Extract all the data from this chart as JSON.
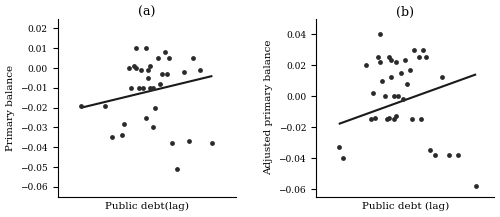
{
  "panel_a": {
    "title": "(a)",
    "xlabel": "Public debt(lag)",
    "ylabel": "Primary balance",
    "scatter_x": [
      0.35,
      0.38,
      0.42,
      0.43,
      0.45,
      0.46,
      0.47,
      0.48,
      0.48,
      0.49,
      0.5,
      0.51,
      0.52,
      0.52,
      0.53,
      0.53,
      0.54,
      0.54,
      0.55,
      0.55,
      0.56,
      0.57,
      0.58,
      0.59,
      0.6,
      0.61,
      0.62,
      0.63,
      0.65,
      0.68,
      0.7,
      0.72,
      0.75,
      0.8,
      0.25
    ],
    "scatter_y": [
      -0.019,
      -0.035,
      -0.034,
      -0.028,
      0.0,
      -0.01,
      0.001,
      0.0,
      0.01,
      -0.01,
      -0.001,
      -0.01,
      -0.025,
      0.01,
      -0.005,
      -0.001,
      0.001,
      -0.01,
      -0.01,
      -0.03,
      -0.02,
      0.005,
      -0.008,
      -0.003,
      0.008,
      -0.003,
      0.005,
      -0.038,
      -0.051,
      -0.002,
      -0.037,
      0.005,
      -0.001,
      -0.038,
      -0.019
    ],
    "trendline_x": [
      0.25,
      0.8
    ],
    "trendline_y": [
      -0.02,
      -0.004
    ],
    "ylim": [
      -0.065,
      0.025
    ],
    "yticks": [
      -0.06,
      -0.05,
      -0.04,
      -0.03,
      -0.02,
      -0.01,
      0.0,
      0.01,
      0.02
    ],
    "xlim": [
      0.15,
      0.9
    ]
  },
  "panel_b": {
    "title": "(b)",
    "xlabel": "Public debt (lag)",
    "ylabel": "Adjusted primary balance",
    "scatter_x": [
      0.42,
      0.44,
      0.45,
      0.46,
      0.47,
      0.48,
      0.48,
      0.49,
      0.5,
      0.51,
      0.52,
      0.52,
      0.53,
      0.53,
      0.54,
      0.54,
      0.55,
      0.55,
      0.56,
      0.57,
      0.58,
      0.59,
      0.6,
      0.61,
      0.62,
      0.63,
      0.65,
      0.66,
      0.67,
      0.68,
      0.7,
      0.72,
      0.75,
      0.78,
      0.82,
      0.9,
      0.3,
      0.32
    ],
    "scatter_y": [
      0.02,
      -0.015,
      0.002,
      -0.014,
      0.025,
      0.022,
      0.04,
      0.01,
      0.0,
      -0.015,
      -0.014,
      0.025,
      0.023,
      0.012,
      0.0,
      -0.015,
      -0.013,
      0.022,
      0.0,
      0.015,
      -0.002,
      0.023,
      0.008,
      0.017,
      -0.015,
      0.03,
      0.025,
      -0.015,
      0.03,
      0.025,
      -0.035,
      -0.038,
      0.012,
      -0.038,
      -0.038,
      -0.058,
      -0.033,
      -0.04
    ],
    "trendline_x": [
      0.3,
      0.9
    ],
    "trendline_y": [
      -0.018,
      0.014
    ],
    "ylim": [
      -0.065,
      0.05
    ],
    "yticks": [
      -0.06,
      -0.04,
      -0.02,
      0.0,
      0.02,
      0.04
    ],
    "xlim": [
      0.2,
      0.98
    ]
  },
  "marker_color": "#2a2a2a",
  "marker_size": 12,
  "line_color": "#1a1a1a",
  "line_width": 1.5,
  "font_size_title": 9,
  "font_size_label": 7.5,
  "font_size_tick": 6.5,
  "background_color": "#ffffff"
}
